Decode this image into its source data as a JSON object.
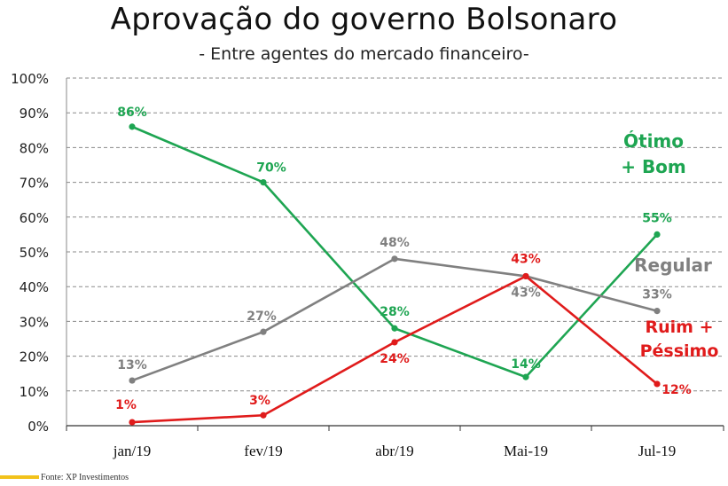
{
  "title": "Aprovação do governo Bolsonaro",
  "subtitle": "- Entre agentes do mercado financeiro-",
  "source": "Fonte: XP Investimentos",
  "chart_data": {
    "type": "line",
    "categories": [
      "jan/19",
      "fev/19",
      "abr/19",
      "Mai-19",
      "Jul-19"
    ],
    "ylim": [
      0,
      100
    ],
    "y_ticks": [
      "0%",
      "10%",
      "20%",
      "30%",
      "40%",
      "50%",
      "60%",
      "70%",
      "80%",
      "90%",
      "100%"
    ],
    "grid": true,
    "series": [
      {
        "name": "Ótimo + Bom",
        "name_lines": [
          "Ótimo",
          "+ Bom"
        ],
        "color": "#1ea552",
        "values": [
          86,
          70,
          28,
          14,
          55
        ],
        "labels": [
          "86%",
          "70%",
          "28%",
          "14%",
          "55%"
        ]
      },
      {
        "name": "Regular",
        "name_lines": [
          "Regular"
        ],
        "color": "#808080",
        "values": [
          13,
          27,
          48,
          43,
          33
        ],
        "labels": [
          "13%",
          "27%",
          "48%",
          "43%",
          "33%"
        ]
      },
      {
        "name": "Ruim + Péssimo",
        "name_lines": [
          "Ruim +",
          "Péssimo"
        ],
        "color": "#e01b1b",
        "values": [
          1,
          3,
          24,
          43,
          12
        ],
        "labels": [
          "1%",
          "3%",
          "24%",
          "43%",
          "12%"
        ]
      }
    ]
  }
}
